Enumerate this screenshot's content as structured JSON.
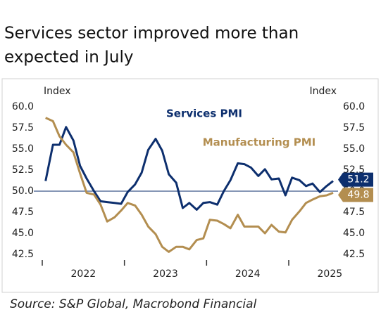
{
  "chart_data": {
    "type": "line",
    "title": [
      "Services sector improved more than",
      "expected in July"
    ],
    "y_axis_label": "Index",
    "y2_axis_label": "Index",
    "source": "Source: S&P Global, Macrobond Financial",
    "x": [
      2022.04,
      2022.13,
      2022.21,
      2022.29,
      2022.38,
      2022.46,
      2022.54,
      2022.63,
      2022.71,
      2022.79,
      2022.88,
      2022.96,
      2023.04,
      2023.13,
      2023.21,
      2023.29,
      2023.38,
      2023.46,
      2023.54,
      2023.63,
      2023.71,
      2023.79,
      2023.88,
      2023.96,
      2024.04,
      2024.13,
      2024.21,
      2024.29,
      2024.38,
      2024.46,
      2024.54,
      2024.63,
      2024.71,
      2024.79,
      2024.88,
      2024.96,
      2025.04,
      2025.13,
      2025.21,
      2025.29,
      2025.38,
      2025.46,
      2025.54
    ],
    "xlim": [
      2022,
      2025.6
    ],
    "xticks": [
      {
        "value": 2022,
        "label": "2022"
      },
      {
        "value": 2023,
        "label": "2023"
      },
      {
        "value": 2024,
        "label": "2024"
      },
      {
        "value": 2025,
        "label": "2025"
      }
    ],
    "ylim": [
      42.5,
      60
    ],
    "yticks": [
      {
        "value": 42.5,
        "label": "42.5"
      },
      {
        "value": 45,
        "label": "45.0"
      },
      {
        "value": 47.5,
        "label": "47.5"
      },
      {
        "value": 50,
        "label": "50.0"
      },
      {
        "value": 52.5,
        "label": "52.5"
      },
      {
        "value": 55,
        "label": "55.0"
      },
      {
        "value": 57.5,
        "label": "57.5"
      },
      {
        "value": 60,
        "label": "60.0"
      }
    ],
    "reference_line": 50,
    "series": [
      {
        "name": "Services PMI",
        "color": "#0d2f6e",
        "values": [
          51.2,
          55.5,
          55.5,
          57.6,
          56.0,
          53.0,
          51.5,
          50.0,
          48.8,
          48.7,
          48.6,
          48.5,
          49.9,
          50.8,
          52.2,
          54.9,
          56.2,
          54.8,
          52.0,
          51.0,
          48.0,
          48.6,
          47.8,
          48.6,
          48.7,
          48.4,
          50.0,
          51.3,
          53.3,
          53.2,
          52.8,
          51.8,
          52.6,
          51.4,
          51.5,
          49.5,
          51.6,
          51.3,
          50.6,
          50.9,
          49.9,
          50.6,
          51.2
        ]
      },
      {
        "name": "Manufacturing PMI",
        "color": "#b38e50",
        "values": [
          58.7,
          58.3,
          56.5,
          55.5,
          54.6,
          52.1,
          49.8,
          49.6,
          48.4,
          46.4,
          46.9,
          47.7,
          48.6,
          48.3,
          47.2,
          45.8,
          44.9,
          43.4,
          42.8,
          43.4,
          43.4,
          43.1,
          44.2,
          44.4,
          46.6,
          46.5,
          46.1,
          45.6,
          47.2,
          45.8,
          45.8,
          45.8,
          45.0,
          46.0,
          45.2,
          45.1,
          46.6,
          47.6,
          48.6,
          49.0,
          49.4,
          49.5,
          49.8
        ]
      }
    ]
  }
}
